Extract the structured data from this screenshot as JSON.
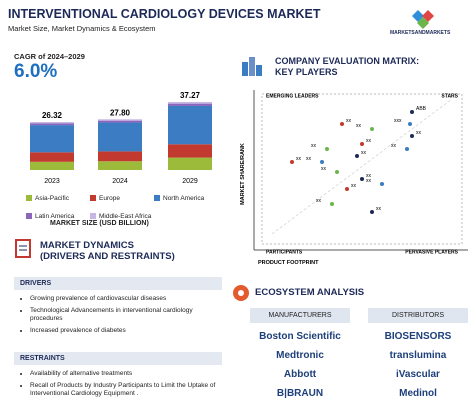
{
  "header": {
    "title": "INTERVENTIONAL CARDIOLOGY DEVICES MARKET",
    "subtitle": "Market Size, Market Dynamics & Ecosystem",
    "logo": "MARKETSANDMARKETS"
  },
  "cagr": {
    "label": "CAGR of 2024–2029",
    "value": "6.0%"
  },
  "chart_data": {
    "type": "bar",
    "stacked": true,
    "categories": [
      "2023",
      "2024",
      "2029"
    ],
    "series": [
      {
        "name": "Asia-Pacific",
        "color": "#9cbb3b",
        "values": [
          4.5,
          4.8,
          6.8
        ]
      },
      {
        "name": "Europe",
        "color": "#c23a2f",
        "values": [
          5.2,
          5.4,
          7.3
        ]
      },
      {
        "name": "North America",
        "color": "#3b7cc2",
        "values": [
          14.9,
          15.8,
          21.0
        ]
      },
      {
        "name": "Latin America",
        "color": "#8a66bd",
        "values": [
          1.0,
          1.05,
          1.27
        ]
      },
      {
        "name": "Middle-East Africa",
        "color": "#c7b7e6",
        "values": [
          0.72,
          0.75,
          0.9
        ]
      }
    ],
    "totals": [
      26.32,
      27.8,
      37.27
    ],
    "total_labels": [
      "26.32",
      "27.80",
      "37.27"
    ],
    "xlabel": "MARKET SIZE (USD BILLION)"
  },
  "matrix": {
    "title": [
      "COMPANY EVALUATION MATRIX:",
      "KEY PLAYERS"
    ],
    "quadrants": [
      "EMERGING LEADERS",
      "STARS",
      "PARTICIPANTS",
      "PERVASIVE PLAYERS"
    ],
    "ylabel": "MARKET SHARE/RANK",
    "xlabel": "PRODUCT FOOTPRINT",
    "points": [
      "ABB",
      "xxx",
      "xx",
      "xx",
      "xx",
      "xx",
      "xx",
      "xx",
      "xx",
      "xx",
      "xx",
      "xx",
      "xx",
      "xx",
      "xx",
      "xx",
      "xx"
    ]
  },
  "dynamics": {
    "title": "MARKET DYNAMICS",
    "subtitle": "(DRIVERS AND RESTRAINTS)",
    "drivers": {
      "heading": "DRIVERS",
      "items": [
        "Growing prevalence of cardiovascular diseases",
        "Technological Advancements in interventional cardiology procedures",
        "Increased prevalence of diabetes"
      ]
    },
    "restraints": {
      "heading": "RESTRAINTS",
      "items": [
        "Availability of alternative treatments",
        "Recall of Products by Industry Participants to Limit the Uptake of Interventional Cardiology Equipment ."
      ]
    }
  },
  "ecosystem": {
    "title": "ECOSYSTEM ANALYSIS",
    "columns": [
      {
        "heading": "MANUFACTURERS",
        "items": [
          "Boston Scientific",
          "Medtronic",
          "Abbott",
          "B|BRAUN"
        ]
      },
      {
        "heading": "DISTRIBUTORS",
        "items": [
          "BIOSENSORS",
          "translumina",
          "iVascular",
          "Medinol"
        ]
      }
    ]
  }
}
